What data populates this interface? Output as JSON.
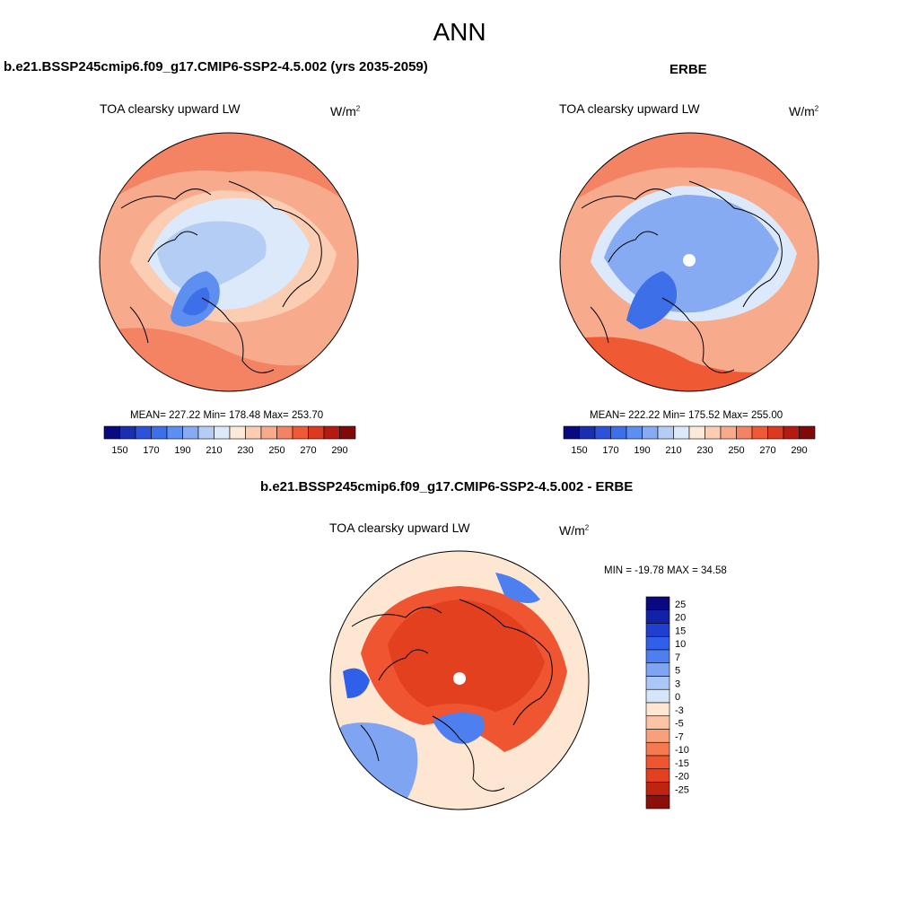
{
  "figure": {
    "season": "ANN"
  },
  "panels": {
    "model": {
      "title": "b.e21.BSSP245cmip6.f09_g17.CMIP6-SSP2-4.5.002 (yrs 2035-2059)",
      "variable": "TOA clearsky upward LW",
      "units_base": "W/m",
      "units_exp": "2",
      "stats": "MEAN= 227.22  Min= 178.48  Max= 253.70"
    },
    "obs": {
      "title": "ERBE",
      "variable": "TOA clearsky upward LW",
      "units_base": "W/m",
      "units_exp": "2",
      "stats": "MEAN= 222.22  Min= 175.52  Max= 255.00"
    },
    "diff": {
      "title": "b.e21.BSSP245cmip6.f09_g17.CMIP6-SSP2-4.5.002 - ERBE",
      "variable": "TOA clearsky upward LW",
      "units_base": "W/m",
      "units_exp": "2",
      "stats": "MIN = -19.78 MAX =  34.58"
    }
  },
  "colorbars": {
    "absolute": {
      "colors": [
        "#0a0a80",
        "#1a2fb0",
        "#2b52d9",
        "#3d70e8",
        "#5c8ff0",
        "#86abf2",
        "#b3cdf5",
        "#dbe9fb",
        "#fde9d9",
        "#fbcdb3",
        "#f8ab8c",
        "#f48363",
        "#ef5a35",
        "#dc3a1e",
        "#b51a10",
        "#7f0a08"
      ],
      "tick_labels": [
        "150",
        "170",
        "190",
        "210",
        "230",
        "250",
        "270",
        "290"
      ]
    },
    "difference": {
      "colors": [
        "#0a0a80",
        "#1122a8",
        "#1f3fd1",
        "#3060ea",
        "#4e7ff0",
        "#7ea4f2",
        "#aac7f5",
        "#d6e6fa",
        "#fde6d2",
        "#fbc4a6",
        "#f8a07a",
        "#f47a52",
        "#ef5531",
        "#e2401f",
        "#bf2410",
        "#8c0f08"
      ],
      "tick_labels": [
        "25",
        "20",
        "15",
        "10",
        "7",
        "5",
        "3",
        "0",
        "-3",
        "-5",
        "-7",
        "-10",
        "-15",
        "-20",
        "-25"
      ]
    }
  },
  "maps": {
    "model": {
      "plot_type": "polar stereographic filled contour",
      "region": "Northern hemisphere polar cap",
      "color_scale": "absolute",
      "outer_color": "#f8ab8c",
      "inner_color": "#b3cdf5",
      "min_color": "#3d70e8"
    },
    "obs": {
      "plot_type": "polar stereographic filled contour",
      "region": "Northern hemisphere polar cap",
      "color_scale": "absolute",
      "outer_color": "#f8ab8c",
      "inner_color": "#86abf2",
      "min_color": "#3d70e8",
      "pole_missing": true
    },
    "diff": {
      "plot_type": "polar stereographic filled contour",
      "region": "Northern hemisphere polar cap",
      "color_scale": "difference",
      "outer_color": "#fde6d2",
      "ring_color": "#ef5531",
      "neg_color": "#4e7ff0",
      "pole_missing": true
    }
  }
}
